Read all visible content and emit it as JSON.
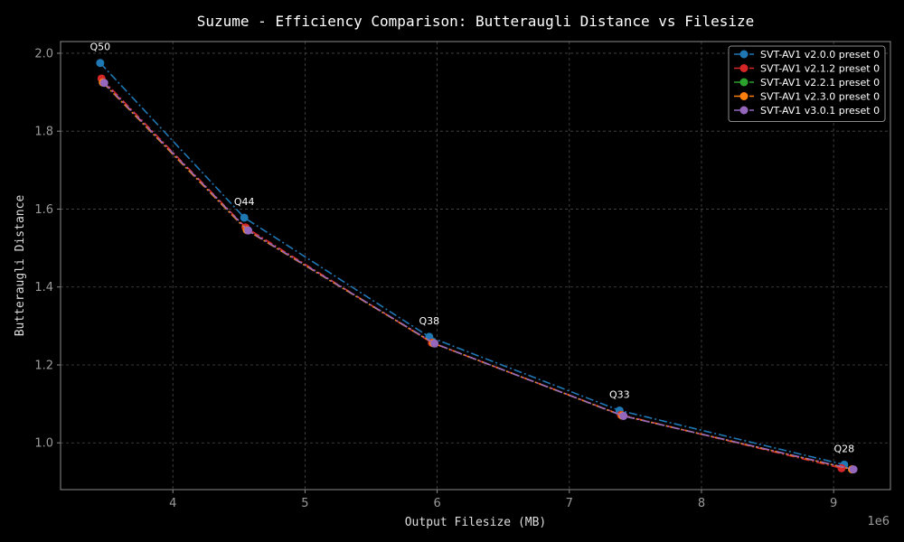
{
  "chart_data": {
    "type": "line",
    "title": "Suzume - Efficiency Comparison: Butteraugli Distance vs Filesize",
    "xlabel": "Output Filesize (MB)",
    "ylabel": "Butteraugli Distance",
    "x_offset_label": "1e6",
    "xlim": [
      3150000,
      9430000
    ],
    "ylim": [
      0.88,
      2.03
    ],
    "xticks": [
      4000000,
      5000000,
      6000000,
      7000000,
      8000000,
      9000000
    ],
    "xtick_labels": [
      "4",
      "5",
      "6",
      "7",
      "8",
      "9"
    ],
    "yticks": [
      1.0,
      1.2,
      1.4,
      1.6,
      1.8,
      2.0
    ],
    "ytick_labels": [
      "1.0",
      "1.2",
      "1.4",
      "1.6",
      "1.8",
      "2.0"
    ],
    "grid": true,
    "legend_position": "top-right",
    "series": [
      {
        "name": "SVT-AV1 v2.0.0 preset 0",
        "color": "#1f77b4",
        "linestyle": "dashdot",
        "x": [
          3450000,
          4540000,
          5940000,
          7380000,
          9080000
        ],
        "y": [
          1.975,
          1.578,
          1.272,
          1.083,
          0.944
        ]
      },
      {
        "name": "SVT-AV1 v2.1.2 preset 0",
        "color": "#d62728",
        "linestyle": "dashdot",
        "x": [
          3460000,
          4550000,
          5960000,
          7390000,
          9060000
        ],
        "y": [
          1.935,
          1.553,
          1.257,
          1.072,
          0.935
        ]
      },
      {
        "name": "SVT-AV1 v2.2.1 preset 0",
        "color": "#2ca02c",
        "linestyle": "dashdot",
        "x": [
          3470000,
          4560000,
          5970000,
          7400000,
          9140000
        ],
        "y": [
          1.925,
          1.546,
          1.256,
          1.07,
          0.932
        ]
      },
      {
        "name": "SVT-AV1 v2.3.0 preset 0",
        "color": "#ff7f0e",
        "linestyle": "dashdot",
        "x": [
          3470000,
          4560000,
          5970000,
          7400000,
          9140000
        ],
        "y": [
          1.925,
          1.546,
          1.256,
          1.07,
          0.932
        ]
      },
      {
        "name": "SVT-AV1 v3.0.1 preset 0",
        "color": "#9467bd",
        "linestyle": "dashdot",
        "x": [
          3480000,
          4570000,
          5980000,
          7410000,
          9150000
        ],
        "y": [
          1.924,
          1.545,
          1.255,
          1.069,
          0.932
        ]
      }
    ],
    "annotations": [
      {
        "text": "Q50",
        "x": 3450000,
        "y": 1.975
      },
      {
        "text": "Q44",
        "x": 4540000,
        "y": 1.578
      },
      {
        "text": "Q38",
        "x": 5940000,
        "y": 1.272
      },
      {
        "text": "Q33",
        "x": 7380000,
        "y": 1.083
      },
      {
        "text": "Q28",
        "x": 9080000,
        "y": 0.944
      }
    ]
  }
}
